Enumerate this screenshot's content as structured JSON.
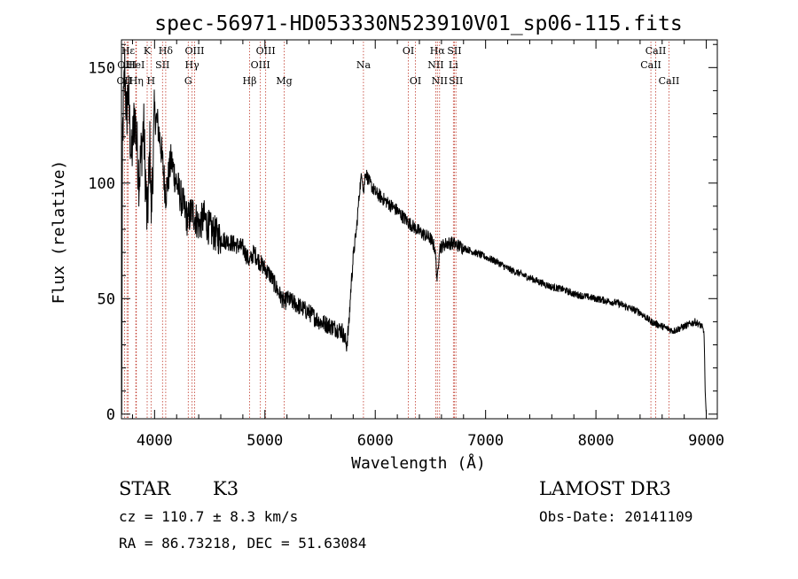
{
  "chart_data": {
    "type": "line",
    "title": "spec-56971-HD053330N523910V01_sp06-115.fits",
    "xlabel": "Wavelength (Å)",
    "ylabel": "Flux (relative)",
    "xlim": [
      3700,
      9100
    ],
    "ylim": [
      -2,
      162
    ],
    "xticks": [
      4000,
      5000,
      6000,
      7000,
      8000,
      9000
    ],
    "yticks": [
      0,
      50,
      100,
      150
    ],
    "xtick_labels": [
      "4000",
      "5000",
      "6000",
      "7000",
      "8000",
      "9000"
    ],
    "ytick_labels": [
      "0",
      "50",
      "100",
      "150"
    ],
    "grid": false,
    "line_color": "#000000",
    "marker_color": "#c0392b",
    "spectrum_anchors": [
      [
        3700,
        0
      ],
      [
        3703,
        0
      ],
      [
        3705,
        44
      ],
      [
        3710,
        120
      ],
      [
        3730,
        150
      ],
      [
        3745,
        128
      ],
      [
        3760,
        140
      ],
      [
        3790,
        110
      ],
      [
        3820,
        130
      ],
      [
        3860,
        102
      ],
      [
        3900,
        125
      ],
      [
        3933,
        82
      ],
      [
        3960,
        118
      ],
      [
        3968,
        85
      ],
      [
        4000,
        130
      ],
      [
        4030,
        125
      ],
      [
        4060,
        115
      ],
      [
        4101,
        95
      ],
      [
        4150,
        110
      ],
      [
        4200,
        100
      ],
      [
        4250,
        92
      ],
      [
        4300,
        84
      ],
      [
        4340,
        88
      ],
      [
        4400,
        82
      ],
      [
        4450,
        85
      ],
      [
        4500,
        80
      ],
      [
        4550,
        78
      ],
      [
        4600,
        76
      ],
      [
        4700,
        74
      ],
      [
        4800,
        72
      ],
      [
        4861,
        66
      ],
      [
        4900,
        70
      ],
      [
        4950,
        66
      ],
      [
        5000,
        63
      ],
      [
        5050,
        60
      ],
      [
        5100,
        55
      ],
      [
        5175,
        48
      ],
      [
        5200,
        50
      ],
      [
        5300,
        47
      ],
      [
        5400,
        44
      ],
      [
        5500,
        40
      ],
      [
        5600,
        38
      ],
      [
        5700,
        36
      ],
      [
        5740,
        30
      ],
      [
        5760,
        38
      ],
      [
        5780,
        55
      ],
      [
        5800,
        68
      ],
      [
        5830,
        80
      ],
      [
        5860,
        98
      ],
      [
        5880,
        104
      ],
      [
        5895,
        96
      ],
      [
        5910,
        105
      ],
      [
        5950,
        100
      ],
      [
        6000,
        96
      ],
      [
        6100,
        92
      ],
      [
        6200,
        88
      ],
      [
        6300,
        83
      ],
      [
        6400,
        79
      ],
      [
        6500,
        76
      ],
      [
        6540,
        72
      ],
      [
        6563,
        57
      ],
      [
        6580,
        72
      ],
      [
        6650,
        74
      ],
      [
        6700,
        74
      ],
      [
        6800,
        72
      ],
      [
        6900,
        70
      ],
      [
        7000,
        68
      ],
      [
        7100,
        66
      ],
      [
        7200,
        63
      ],
      [
        7300,
        61
      ],
      [
        7400,
        59
      ],
      [
        7500,
        57
      ],
      [
        7600,
        55
      ],
      [
        7700,
        54
      ],
      [
        7800,
        52
      ],
      [
        7900,
        51
      ],
      [
        8000,
        50
      ],
      [
        8100,
        49
      ],
      [
        8200,
        48
      ],
      [
        8300,
        46
      ],
      [
        8400,
        44
      ],
      [
        8500,
        40
      ],
      [
        8600,
        38
      ],
      [
        8700,
        36
      ],
      [
        8800,
        38
      ],
      [
        8900,
        40
      ],
      [
        8960,
        38
      ],
      [
        8980,
        35
      ],
      [
        8990,
        10
      ],
      [
        9000,
        0
      ]
    ],
    "lines": [
      {
        "label": "OII",
        "wavelength": 3727,
        "row": 3
      },
      {
        "label": "Hε",
        "wavelength": 3760,
        "row": 1
      },
      {
        "label": "OIII",
        "wavelength": 3750,
        "row": 2
      },
      {
        "label": "HeI",
        "wavelength": 3830,
        "row": 2
      },
      {
        "label": "Hη",
        "wavelength": 3835,
        "row": 3
      },
      {
        "label": "K",
        "wavelength": 3933,
        "row": 1
      },
      {
        "label": "SII",
        "wavelength": 4072,
        "row": 2
      },
      {
        "label": "H",
        "wavelength": 3968,
        "row": 3
      },
      {
        "label": "Hδ",
        "wavelength": 4101,
        "row": 1
      },
      {
        "label": "OIII",
        "wavelength": 4363,
        "row": 1
      },
      {
        "label": "Hγ",
        "wavelength": 4340,
        "row": 2
      },
      {
        "label": "G",
        "wavelength": 4305,
        "row": 3
      },
      {
        "label": "OIII",
        "wavelength": 5007,
        "row": 1
      },
      {
        "label": "OIII",
        "wavelength": 4959,
        "row": 2
      },
      {
        "label": "Hβ",
        "wavelength": 4861,
        "row": 3
      },
      {
        "label": "Mg",
        "wavelength": 5175,
        "row": 3
      },
      {
        "label": "Na",
        "wavelength": 5893,
        "row": 2
      },
      {
        "label": "OI",
        "wavelength": 6300,
        "row": 1
      },
      {
        "label": "OI",
        "wavelength": 6364,
        "row": 3
      },
      {
        "label": "Hα",
        "wavelength": 6563,
        "row": 1
      },
      {
        "label": "NII",
        "wavelength": 6548,
        "row": 2
      },
      {
        "label": "NII",
        "wavelength": 6583,
        "row": 3
      },
      {
        "label": "SII",
        "wavelength": 6717,
        "row": 1
      },
      {
        "label": "Li",
        "wavelength": 6708,
        "row": 2
      },
      {
        "label": "SII",
        "wavelength": 6731,
        "row": 3
      },
      {
        "label": "CaII",
        "wavelength": 8542,
        "row": 1
      },
      {
        "label": "CaII",
        "wavelength": 8498,
        "row": 2
      },
      {
        "label": "CaII",
        "wavelength": 8662,
        "row": 3
      }
    ]
  },
  "info": {
    "object_class": "STAR",
    "subclass": "K3",
    "survey": "LAMOST DR3",
    "redshift": "cz = 110.7 ± 8.3 km/s",
    "obs_date": "Obs-Date: 20141109",
    "coords": "RA =  86.73218, DEC =  51.63084"
  }
}
